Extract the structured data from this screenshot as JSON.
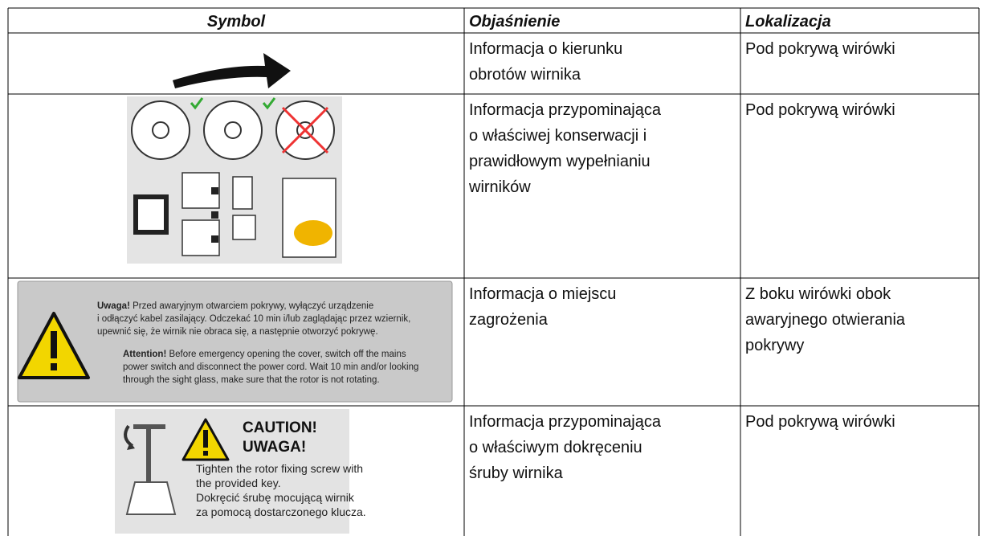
{
  "table": {
    "headers": [
      "Symbol",
      "Objaśnienie",
      "Lokalizacja"
    ],
    "rows": [
      {
        "explanation": [
          "Informacja o kierunku",
          "obrotów wirnika"
        ],
        "location": [
          "Pod pokrywą wirówki"
        ]
      },
      {
        "explanation": [
          "Informacja przypominająca",
          "o właściwej konserwacji i",
          "prawidłowym wypełnianiu",
          "wirników"
        ],
        "location": [
          "Pod pokrywą wirówki"
        ]
      },
      {
        "explanation": [
          "Informacja o miejscu",
          "zagrożenia"
        ],
        "location": [
          "Z boku wirówki obok",
          "awaryjnego otwierania",
          "pokrywy"
        ],
        "symbol": {
          "pl_lead": "Uwaga!",
          "pl_lines": [
            " Przed awaryjnym otwarciem pokrywy, wyłączyć urządzenie",
            "i odłączyć kabel zasilający. Odczekać 10 min i/lub zaglądając przez wziernik,",
            "upewnić się, że wirnik nie obraca się, a następnie otworzyć pokrywę."
          ],
          "en_lead": "Attention!",
          "en_lines": [
            " Before emergency opening the cover, switch off the mains",
            "power switch and disconnect the power cord. Wait 10 min and/or looking",
            "through the sight glass, make sure that the rotor is not rotating."
          ]
        }
      },
      {
        "explanation": [
          "Informacja przypominająca",
          "o właściwym dokręceniu",
          "śruby wirnika"
        ],
        "location": [
          "Pod pokrywą wirówki"
        ],
        "symbol": {
          "heading": [
            "CAUTION!",
            "UWAGA!"
          ],
          "lines": [
            "Tighten the rotor fixing screw with",
            "the provided key.",
            "Dokręcić śrubę mocującą wirnik",
            "za pomocą dostarczonego klucza."
          ]
        }
      }
    ]
  }
}
